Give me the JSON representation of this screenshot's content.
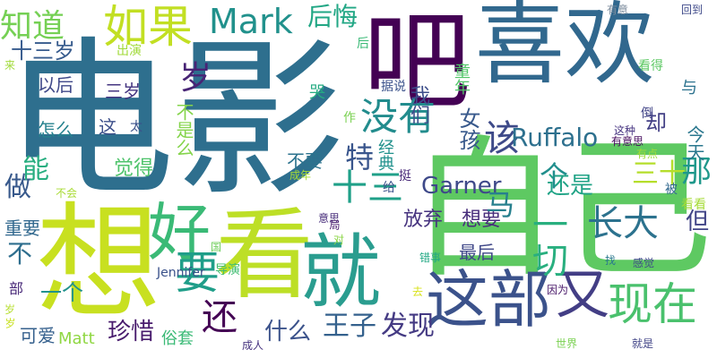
{
  "background": "#ffffff",
  "words": [
    {
      "text": "电影",
      "color": "#2e6f8e",
      "vertical": false
    },
    {
      "text": "自己",
      "color": "#5ec962",
      "vertical": false
    },
    {
      "text": "喜欢",
      "color": "#31688e",
      "vertical": false
    },
    {
      "text": "吧",
      "color": "#440154",
      "vertical": false
    },
    {
      "text": "想",
      "color": "#c8e020",
      "vertical": false
    },
    {
      "text": "看",
      "color": "#bddf26",
      "vertical": false
    },
    {
      "text": "就",
      "color": "#2a9d8f",
      "vertical": false
    },
    {
      "text": "好",
      "color": "#3aba76",
      "vertical": false
    },
    {
      "text": "这部",
      "color": "#3b528b",
      "vertical": false
    },
    {
      "text": "又",
      "color": "#433e85",
      "vertical": false
    },
    {
      "text": "现在",
      "color": "#4ac16d",
      "vertical": false
    },
    {
      "text": "如果",
      "color": "#c2df23",
      "vertical": false
    },
    {
      "text": "知道",
      "color": "#75d054",
      "vertical": false
    },
    {
      "text": "Mark",
      "color": "#21918c",
      "vertical": false
    },
    {
      "text": "后悔",
      "color": "#22a785",
      "vertical": false
    },
    {
      "text": "没有",
      "color": "#228c8d",
      "vertical": false
    },
    {
      "text": "该",
      "color": "#3e4a89",
      "vertical": false
    },
    {
      "text": "Ruffalo",
      "color": "#2d708e",
      "vertical": false
    },
    {
      "text": "却",
      "color": "#423f85",
      "vertical": false
    },
    {
      "text": "要",
      "color": "#1f9e89",
      "vertical": false
    },
    {
      "text": "还",
      "color": "#440154",
      "vertical": false
    },
    {
      "text": "长大",
      "color": "#2c728e",
      "vertical": false
    },
    {
      "text": "十三",
      "color": "#1fa088",
      "vertical": false
    },
    {
      "text": "特",
      "color": "#39558c",
      "vertical": false
    },
    {
      "text": "做",
      "color": "#38598c",
      "vertical": false
    },
    {
      "text": "能",
      "color": "#28ae80",
      "vertical": false
    },
    {
      "text": "十三岁",
      "color": "#375b8d",
      "vertical": false
    },
    {
      "text": "以后",
      "color": "#3f4889",
      "vertical": false
    },
    {
      "text": "三岁",
      "color": "#453581",
      "vertical": false
    },
    {
      "text": "怎么",
      "color": "#26828e",
      "vertical": false
    },
    {
      "text": "这",
      "color": "#3c4f8a",
      "vertical": false
    },
    {
      "text": "觉得",
      "color": "#4ec36b",
      "vertical": false
    },
    {
      "text": "重要",
      "color": "#31688e",
      "vertical": false
    },
    {
      "text": "不",
      "color": "#2e6e8e",
      "vertical": false
    },
    {
      "text": "部",
      "color": "#482878",
      "vertical": false
    },
    {
      "text": "一个",
      "color": "#21918c",
      "vertical": false
    },
    {
      "text": "可爱",
      "color": "#35608d",
      "vertical": false
    },
    {
      "text": "Matt",
      "color": "#90d743",
      "vertical": false
    },
    {
      "text": "珍惜",
      "color": "#481b6d",
      "vertical": false
    },
    {
      "text": "什么",
      "color": "#3b528b",
      "vertical": false
    },
    {
      "text": "王子",
      "color": "#34618d",
      "vertical": false
    },
    {
      "text": "发现",
      "color": "#443a83",
      "vertical": false
    },
    {
      "text": "放弃",
      "color": "#46337f",
      "vertical": false
    },
    {
      "text": "想要",
      "color": "#472d7b",
      "vertical": false
    },
    {
      "text": "最后",
      "color": "#3f4788",
      "vertical": false
    },
    {
      "text": "Garner",
      "color": "#3e4989",
      "vertical": false
    },
    {
      "text": "还是",
      "color": "#20a386",
      "vertical": false
    },
    {
      "text": "三十",
      "color": "#b5de2b",
      "vertical": false
    },
    {
      "text": "那",
      "color": "#1f988b",
      "vertical": false
    },
    {
      "text": "但",
      "color": "#414487",
      "vertical": false
    },
    {
      "text": "一切",
      "color": "#29af7f",
      "vertical": false
    },
    {
      "text": "马",
      "color": "#27808e",
      "vertical": false
    },
    {
      "text": "个",
      "color": "#218f8d",
      "vertical": false
    },
    {
      "text": "我们",
      "color": "#3d4e8a",
      "vertical": false
    },
    {
      "text": "经典",
      "color": "#21918c",
      "vertical": false
    },
    {
      "text": "女孩",
      "color": "#38598c",
      "vertical": false
    },
    {
      "text": "童年",
      "color": "#52c569",
      "vertical": false
    },
    {
      "text": "不要",
      "color": "#2c738e",
      "vertical": false
    },
    {
      "text": "今天",
      "color": "#2a778e",
      "vertical": false
    },
    {
      "text": "与",
      "color": "#2c728e",
      "vertical": false
    },
    {
      "text": "岁",
      "color": "#482475",
      "vertical": false
    },
    {
      "text": "不是么",
      "color": "#84d44b",
      "vertical": false
    },
    {
      "text": "哭",
      "color": "#25ab82",
      "vertical": false
    },
    {
      "text": "后",
      "color": "#3aba76",
      "vertical": false
    },
    {
      "text": "出演",
      "color": "#a0da39",
      "vertical": false
    },
    {
      "text": "据说",
      "color": "#3b528b",
      "vertical": false
    },
    {
      "text": "作",
      "color": "#7ad151",
      "vertical": false
    },
    {
      "text": "太",
      "color": "#3b528b",
      "vertical": false
    },
    {
      "text": "挺",
      "color": "#482878",
      "vertical": false
    },
    {
      "text": "给",
      "color": "#3b528b",
      "vertical": false
    },
    {
      "text": "被",
      "color": "#31688e",
      "vertical": false
    },
    {
      "text": "看看",
      "color": "#a5db36",
      "vertical": false
    },
    {
      "text": "有意",
      "color": "#7e8e9e",
      "vertical": false
    },
    {
      "text": "回到",
      "color": "#3e4989",
      "vertical": false
    },
    {
      "text": "看得",
      "color": "#5cc863",
      "vertical": false
    },
    {
      "text": "倒",
      "color": "#414487",
      "vertical": false
    },
    {
      "text": "这种",
      "color": "#463480",
      "vertical": false
    },
    {
      "text": "有意思",
      "color": "#460b5e",
      "vertical": false
    },
    {
      "text": "有点",
      "color": "#a0da39",
      "vertical": false
    },
    {
      "text": "成年",
      "color": "#a8db34",
      "vertical": false
    },
    {
      "text": "不会",
      "color": "#a8db34",
      "vertical": false
    },
    {
      "text": "意思",
      "color": "#472c7a",
      "vertical": false
    },
    {
      "text": "局",
      "color": "#481a6c",
      "vertical": false
    },
    {
      "text": "对",
      "color": "#8bd646",
      "vertical": false
    },
    {
      "text": "错事",
      "color": "#22a884",
      "vertical": false
    },
    {
      "text": "因为",
      "color": "#481769",
      "vertical": false
    },
    {
      "text": "感觉",
      "color": "#3e4989",
      "vertical": false
    },
    {
      "text": "Jennifer",
      "color": "#3b528b",
      "vertical": false
    },
    {
      "text": "导演",
      "color": "#40bd72",
      "vertical": false
    },
    {
      "text": "去",
      "color": "#d8e219",
      "vertical": false
    },
    {
      "text": "成人",
      "color": "#46337f",
      "vertical": false
    },
    {
      "text": "就是",
      "color": "#414487",
      "vertical": false
    },
    {
      "text": "世界",
      "color": "#7ad151",
      "vertical": false
    },
    {
      "text": "俗套",
      "color": "#3aba76",
      "vertical": false
    },
    {
      "text": "来",
      "color": "#a0da39",
      "vertical": false
    },
    {
      "text": "岁",
      "color": "#b5de2b",
      "vertical": false
    },
    {
      "text": "国",
      "color": "#6ccd5a",
      "vertical": false
    },
    {
      "text": "岁",
      "color": "#c8e020",
      "vertical": false
    },
    {
      "text": "找",
      "color": "#2a788e",
      "vertical": false
    }
  ]
}
